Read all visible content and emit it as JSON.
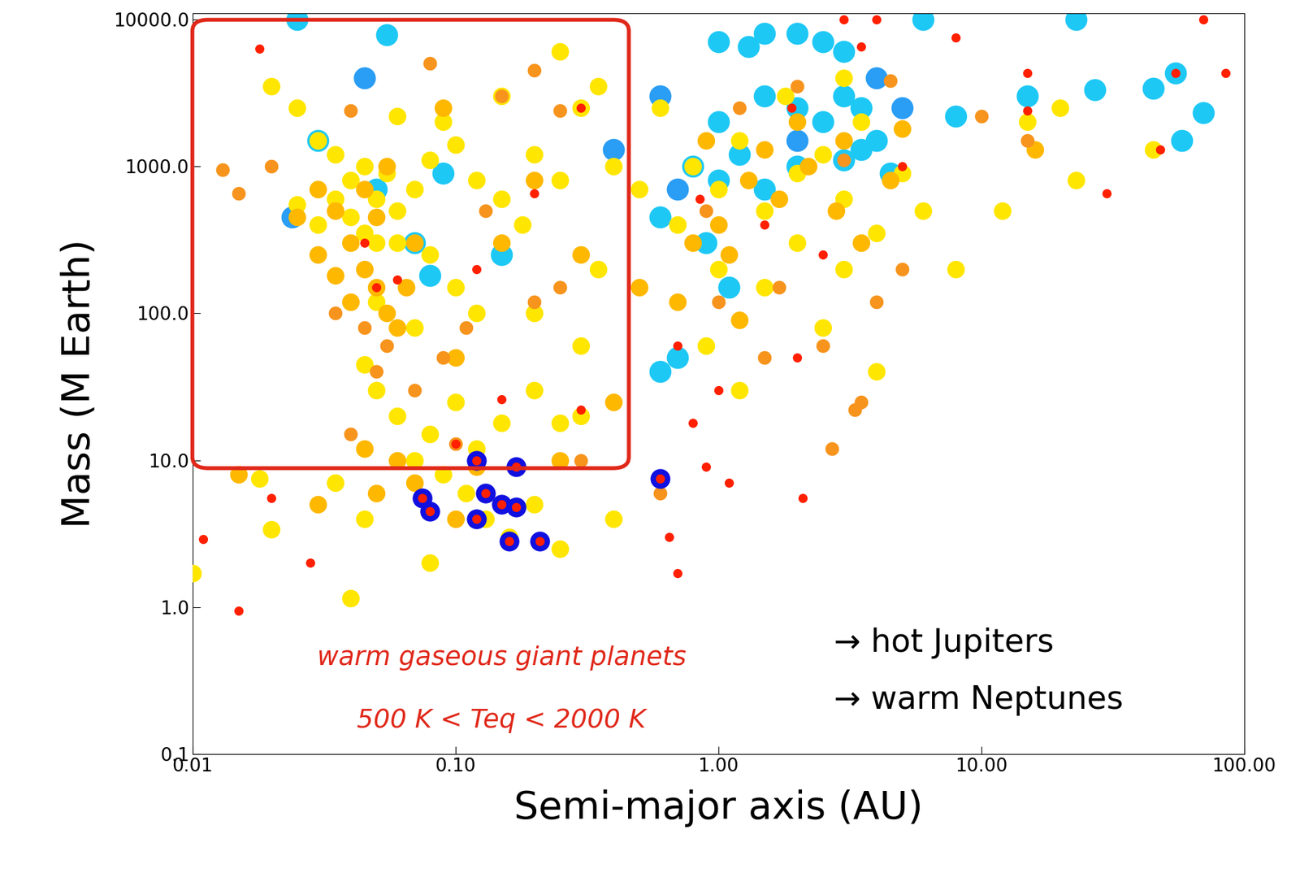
{
  "chart_data": {
    "type": "scatter",
    "x_label": "Semi-major axis (AU)",
    "y_label": "Mass (M Earth)",
    "log": true,
    "grid": false,
    "xlim": [
      0.01,
      100
    ],
    "ylim": [
      0.1,
      11000
    ],
    "xticks": [
      0.01,
      {
        "value": 0.1,
        "label": "0.10"
      },
      {
        "value": 1,
        "label": "1.00"
      },
      {
        "value": 10,
        "label": "10.00"
      },
      {
        "value": 100,
        "label": "100.00"
      }
    ],
    "yticks": [
      0.1,
      1.0,
      10.0,
      100.0,
      1000.0,
      10000.0
    ],
    "annotations": [
      "warm gaseous giant planets",
      "500 K < Teq < 2000 K",
      "→ hot Jupiters",
      "→ warm Neptunes"
    ],
    "series": [
      {
        "color": "#1ec8f5",
        "marker": "circle",
        "x": [
          1,
          1.3,
          1.5,
          2,
          2.5,
          3,
          1.5,
          2,
          2.5,
          3,
          3.5,
          4,
          1,
          1.2,
          0.8,
          1,
          1.5,
          2,
          3,
          4.5,
          0.6,
          0.7,
          1.1,
          0.9,
          23,
          6,
          15,
          27,
          45,
          55,
          70,
          58,
          8,
          0.025,
          0.055,
          0.03,
          0.05,
          0.09,
          0.15,
          0.08,
          0.07,
          0.6,
          3.5
        ],
        "values": [
          7000,
          6500,
          8000,
          8000,
          7000,
          6000,
          3000,
          2500,
          2000,
          3000,
          2500,
          1500,
          2000,
          1200,
          1000,
          800,
          700,
          1000,
          1100,
          900,
          450,
          50,
          150,
          300,
          10000,
          10000,
          3000,
          3300,
          3400,
          4300,
          2300,
          1500,
          2200,
          10000,
          7800,
          1500,
          700,
          900,
          250,
          180,
          300,
          40,
          1300
        ]
      },
      {
        "color": "#2a9df4",
        "marker": "circle",
        "x": [
          0.024,
          0.045,
          0.4,
          0.6,
          0.7,
          4,
          5,
          2
        ],
        "values": [
          450,
          4000,
          1300,
          3000,
          700,
          4000,
          2500,
          1500
        ]
      },
      {
        "color": "#ffe600",
        "marker": "circle",
        "x": [
          0.02,
          0.025,
          0.03,
          0.035,
          0.04,
          0.045,
          0.05,
          0.055,
          0.06,
          0.035,
          0.04,
          0.045,
          0.05,
          0.03,
          0.025,
          0.06,
          0.07,
          0.08,
          0.09,
          0.1,
          0.12,
          0.15,
          0.18,
          0.2,
          0.25,
          0.3,
          0.35,
          0.25,
          0.15,
          0.06,
          0.08,
          0.1,
          0.12,
          0.2,
          0.3,
          0.35,
          0.4,
          0.5,
          0.07,
          0.05,
          0.045,
          0.05,
          0.06,
          0.08,
          0.1,
          0.12,
          0.15,
          0.2,
          0.25,
          0.3,
          0.07,
          0.09,
          0.11,
          0.13,
          0.16,
          0.2,
          0.25,
          0.08,
          0.04,
          0.045,
          0.035,
          0.018,
          0.01,
          0.02,
          0.4,
          0.8,
          1,
          1.2,
          1.5,
          2,
          2.5,
          3,
          3.5,
          4,
          5,
          6,
          1,
          1.5,
          2,
          3,
          0.9,
          1.2,
          2.5,
          4,
          12,
          20,
          23,
          45,
          8,
          15,
          0.7,
          0.6,
          1.8,
          3
        ],
        "values": [
          3500,
          2500,
          1500,
          1200,
          800,
          1000,
          600,
          900,
          500,
          600,
          450,
          350,
          300,
          400,
          550,
          300,
          700,
          1100,
          2000,
          1400,
          800,
          600,
          400,
          1200,
          800,
          2500,
          3500,
          6000,
          3000,
          2200,
          250,
          150,
          100,
          100,
          60,
          200,
          1000,
          700,
          80,
          120,
          45,
          30,
          20,
          15,
          25,
          12,
          18,
          30,
          18,
          20,
          10,
          8,
          6,
          4,
          3,
          5,
          2.5,
          2,
          1.15,
          4,
          7,
          7.5,
          1.7,
          3.4,
          4,
          1000,
          700,
          1500,
          500,
          900,
          1200,
          600,
          2000,
          350,
          900,
          500,
          200,
          150,
          300,
          200,
          60,
          30,
          80,
          40,
          500,
          2500,
          800,
          1300,
          200,
          2000,
          400,
          2500,
          3000,
          4000
        ]
      },
      {
        "color": "#ffb800",
        "marker": "circle",
        "x": [
          0.035,
          0.04,
          0.045,
          0.05,
          0.055,
          0.06,
          0.04,
          0.035,
          0.03,
          0.045,
          0.05,
          0.07,
          0.065,
          0.03,
          0.025,
          0.055,
          0.1,
          0.15,
          0.2,
          0.3,
          0.5,
          0.06,
          0.05,
          0.07,
          0.1,
          0.12,
          0.045,
          0.015,
          0.03,
          0.8,
          1,
          1.3,
          1.7,
          2.2,
          2.8,
          3.5,
          4.5,
          1.1,
          2,
          0.9,
          1.5,
          3,
          5,
          0.7,
          1.2,
          16,
          0.09,
          0.4,
          0.25
        ],
        "values": [
          500,
          300,
          200,
          150,
          100,
          80,
          120,
          180,
          250,
          700,
          450,
          300,
          150,
          700,
          450,
          1000,
          50,
          300,
          800,
          250,
          150,
          10,
          6,
          7,
          4,
          9,
          12,
          8,
          5,
          300,
          400,
          800,
          600,
          1000,
          500,
          300,
          800,
          250,
          2000,
          1500,
          1300,
          1500,
          1800,
          120,
          90,
          1300,
          2500,
          25,
          10
        ]
      },
      {
        "color": "#f7941d",
        "marker": "circle",
        "x": [
          0.013,
          0.015,
          0.04,
          0.08,
          0.15,
          0.2,
          0.25,
          0.02,
          0.035,
          0.045,
          0.055,
          0.05,
          0.04,
          0.07,
          0.09,
          0.11,
          0.2,
          0.25,
          0.13,
          0.3,
          0.1,
          0.6,
          1,
          1.5,
          2.5,
          3.5,
          4,
          5,
          3,
          2,
          1.2,
          0.9,
          10,
          15,
          2.7,
          3.3,
          1.7,
          4.5
        ],
        "values": [
          950,
          650,
          2400,
          5000,
          3000,
          4500,
          2400,
          1000,
          100,
          80,
          60,
          40,
          15,
          30,
          50,
          80,
          120,
          150,
          500,
          10,
          13,
          6,
          120,
          50,
          60,
          25,
          120,
          200,
          1100,
          3500,
          2500,
          500,
          2200,
          1500,
          12,
          22,
          150,
          3800
        ]
      },
      {
        "color": "#1010e0",
        "marker": "circle",
        "x": [
          0.075,
          0.08,
          0.12,
          0.12,
          0.13,
          0.16,
          0.15,
          0.17,
          0.17,
          0.21,
          0.6
        ],
        "values": [
          5.5,
          4.5,
          10,
          4,
          6,
          2.8,
          5,
          9,
          4.8,
          2.8,
          7.5
        ]
      },
      {
        "color": "#ff2000",
        "marker": "circle",
        "x": [
          0.018,
          0.011,
          0.015,
          0.028,
          0.02,
          0.045,
          0.05,
          0.06,
          0.12,
          0.2,
          0.3,
          0.15,
          0.1,
          0.3,
          0.65,
          0.7,
          0.7,
          0.8,
          0.9,
          1,
          1.1,
          0.85,
          1.5,
          2,
          2.1,
          2.5,
          3,
          4,
          3.5,
          8,
          15,
          15,
          30,
          55,
          48,
          70,
          85,
          5,
          1.9,
          0.075,
          0.08,
          0.12,
          0.12,
          0.13,
          0.16,
          0.15,
          0.17,
          0.17,
          0.21,
          0.6
        ],
        "values": [
          6300,
          2.9,
          0.95,
          2,
          5.5,
          300,
          150,
          170,
          200,
          650,
          2500,
          26,
          13,
          22,
          3,
          1.7,
          60,
          18,
          9,
          30,
          7,
          600,
          400,
          50,
          5.5,
          250,
          10000,
          10000,
          6500,
          7500,
          2400,
          4300,
          650,
          4300,
          1300,
          10000,
          4300,
          1000,
          2500,
          5.5,
          4.5,
          10,
          4,
          6,
          2.8,
          5,
          9,
          4.8,
          2.8,
          7.5
        ]
      }
    ]
  }
}
